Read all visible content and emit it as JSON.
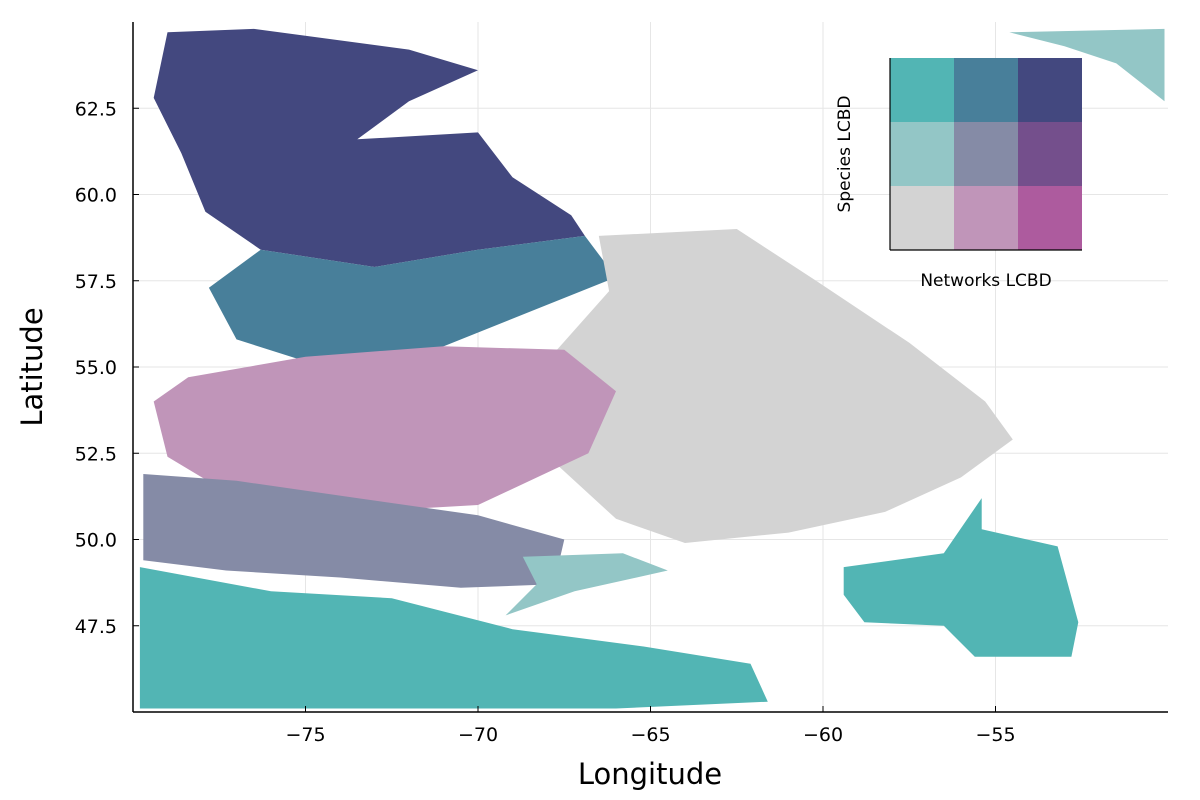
{
  "chart_data": {
    "type": "heatmap",
    "title": "",
    "xlabel": "Longitude",
    "ylabel": "Latitude",
    "xlim": [
      -80,
      -50
    ],
    "ylim": [
      45,
      65
    ],
    "xticks": [
      -75,
      -70,
      -65,
      -60,
      -55
    ],
    "yticks": [
      47.5,
      50.0,
      52.5,
      55.0,
      57.5,
      60.0,
      62.5
    ],
    "grid": true,
    "colormap": "bivariate 3x3 (Networks LCBD x Species LCBD)",
    "legend": {
      "placement": "top-right",
      "xlabel": "Networks LCBD",
      "ylabel": "Species LCBD",
      "colors": [
        [
          "#d3d3d3",
          "#c095b9",
          "#ad5b9e"
        ],
        [
          "#93c6c6",
          "#858ba6",
          "#744f8c"
        ],
        [
          "#52b5b4",
          "#487f9a",
          "#43487f"
        ]
      ]
    },
    "regions_approx": [
      {
        "label": "",
        "class": [
          2,
          2
        ],
        "polygon": [
          [
            -79,
            64.7
          ],
          [
            -76.5,
            64.8
          ],
          [
            -72,
            64.2
          ],
          [
            -70,
            63.6
          ],
          [
            -72,
            62.7
          ],
          [
            -73.5,
            61.6
          ],
          [
            -70,
            61.8
          ],
          [
            -69,
            60.5
          ],
          [
            -67.3,
            59.4
          ],
          [
            -66.9,
            58.8
          ],
          [
            -70,
            58.4
          ],
          [
            -73,
            57.9
          ],
          [
            -76.3,
            58.4
          ],
          [
            -77.9,
            59.5
          ],
          [
            -78.6,
            61.2
          ],
          [
            -79.4,
            62.8
          ]
        ]
      },
      {
        "label": "",
        "class": [
          2,
          1
        ],
        "polygon": [
          [
            -76.3,
            58.4
          ],
          [
            -73,
            57.9
          ],
          [
            -70,
            58.4
          ],
          [
            -66.9,
            58.8
          ],
          [
            -66,
            57.6
          ],
          [
            -68.5,
            56.6
          ],
          [
            -71.5,
            55.4
          ],
          [
            -74.8,
            55.1
          ],
          [
            -77,
            55.8
          ],
          [
            -77.8,
            57.3
          ]
        ]
      },
      {
        "label": "",
        "class": [
          0,
          0
        ],
        "polygon": [
          [
            -66.5,
            58.8
          ],
          [
            -62.5,
            59
          ],
          [
            -60.2,
            57.5
          ],
          [
            -57.5,
            55.7
          ],
          [
            -55.3,
            54
          ],
          [
            -54.5,
            52.9
          ],
          [
            -56,
            51.8
          ],
          [
            -58.2,
            50.8
          ],
          [
            -61,
            50.2
          ],
          [
            -64,
            49.9
          ],
          [
            -66,
            50.6
          ],
          [
            -68.4,
            52.8
          ],
          [
            -67.8,
            55.4
          ],
          [
            -66.2,
            57.2
          ]
        ]
      },
      {
        "label": "",
        "class": [
          0,
          1
        ],
        "polygon": [
          [
            -78.4,
            54.7
          ],
          [
            -75,
            55.3
          ],
          [
            -71,
            55.6
          ],
          [
            -67.5,
            55.5
          ],
          [
            -66,
            54.3
          ],
          [
            -66.8,
            52.5
          ],
          [
            -70,
            51
          ],
          [
            -73.5,
            50.8
          ],
          [
            -77,
            51.2
          ],
          [
            -79,
            52.4
          ],
          [
            -79.4,
            54
          ]
        ]
      },
      {
        "label": "",
        "class": [
          1,
          1
        ],
        "polygon": [
          [
            -79.7,
            51.9
          ],
          [
            -77,
            51.7
          ],
          [
            -73.5,
            51.2
          ],
          [
            -70,
            50.7
          ],
          [
            -67.5,
            50
          ],
          [
            -67.8,
            48.7
          ],
          [
            -70.5,
            48.6
          ],
          [
            -74,
            48.9
          ],
          [
            -77.3,
            49.1
          ],
          [
            -79.7,
            49.4
          ]
        ]
      },
      {
        "label": "",
        "class": [
          2,
          0
        ],
        "polygon": [
          [
            -79.8,
            49.2
          ],
          [
            -76,
            48.5
          ],
          [
            -72.5,
            48.3
          ],
          [
            -69,
            47.4
          ],
          [
            -65.2,
            46.9
          ],
          [
            -62.1,
            46.4
          ],
          [
            -61.6,
            45.3
          ],
          [
            -66,
            45.1
          ],
          [
            -72,
            45.1
          ],
          [
            -79.8,
            45.1
          ]
        ]
      },
      {
        "label": "",
        "class": [
          1,
          0
        ],
        "polygon": [
          [
            -68.7,
            49.5
          ],
          [
            -65.8,
            49.6
          ],
          [
            -64.5,
            49.1
          ],
          [
            -67.2,
            48.5
          ],
          [
            -69.2,
            47.8
          ],
          [
            -68.3,
            48.7
          ]
        ]
      },
      {
        "label": "",
        "class": [
          2,
          0
        ],
        "polygon": [
          [
            -59.4,
            49.2
          ],
          [
            -56.5,
            49.6
          ],
          [
            -55.4,
            51.2
          ],
          [
            -55.4,
            50.3
          ],
          [
            -53.2,
            49.8
          ],
          [
            -52.6,
            47.6
          ],
          [
            -52.8,
            46.6
          ],
          [
            -55.6,
            46.6
          ],
          [
            -56.5,
            47.5
          ],
          [
            -58.8,
            47.6
          ],
          [
            -59.4,
            48.4
          ]
        ]
      },
      {
        "label": "",
        "class": [
          1,
          0
        ],
        "polygon": [
          [
            -54.6,
            64.7
          ],
          [
            -50.1,
            64.8
          ],
          [
            -50.1,
            62.7
          ],
          [
            -51.5,
            63.8
          ],
          [
            -53,
            64.3
          ]
        ]
      }
    ]
  }
}
